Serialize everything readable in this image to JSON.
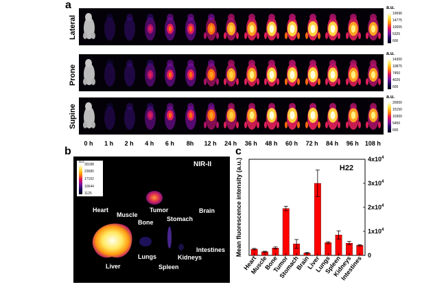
{
  "panel_a": {
    "label": "a",
    "rows": [
      {
        "name": "Lateral",
        "unit": "a.u.",
        "ticks": [
          "19696",
          "14775",
          "10055",
          "5325",
          "600"
        ]
      },
      {
        "name": "Prone",
        "unit": "a.u.",
        "ticks": [
          "14300",
          "10875",
          "7450",
          "4025",
          "600"
        ]
      },
      {
        "name": "Supine",
        "unit": "a.u.",
        "ticks": [
          "20000",
          "15150",
          "10300",
          "5450",
          "600"
        ]
      }
    ],
    "timepoints": [
      "0 h",
      "1 h",
      "2 h",
      "4 h",
      "6 h",
      "8h",
      "12 h",
      "24 h",
      "36 h",
      "48 h",
      "60 h",
      "72 h",
      "84 h",
      "96 h",
      "108 h"
    ]
  },
  "panel_b": {
    "label": "b",
    "tag": "NIR-II",
    "colorbar_unit": "a.u.",
    "colorbar_ticks": [
      "30188",
      "23680",
      "17162",
      "10644",
      "1125"
    ],
    "organs": [
      "Heart",
      "Muscle",
      "Tumor",
      "Brain",
      "Bone",
      "Stomach",
      "Intestines",
      "Lungs",
      "Kidneys",
      "Liver",
      "Spleen"
    ]
  },
  "panel_c": {
    "label": "c",
    "tag": "H22"
  },
  "chart_data": {
    "type": "bar",
    "title": "H22",
    "ylabel": "Mean fluorescence intensity (a.u.)",
    "y_axis_side": "right",
    "ylim": [
      0,
      40000
    ],
    "yticks": [
      0,
      10000,
      20000,
      30000,
      40000
    ],
    "ytick_labels": [
      "0",
      "1x10^4",
      "2x10^4",
      "3x10^4",
      "4x10^4"
    ],
    "categories": [
      "Heart",
      "Muscle",
      "Bone",
      "Tumor",
      "Stomach",
      "Brain",
      "Liver",
      "Lungs",
      "Spleen",
      "Kidneys",
      "Intestines"
    ],
    "values": [
      2600,
      1500,
      3100,
      19500,
      4800,
      1000,
      30000,
      5300,
      8500,
      5100,
      4200
    ],
    "errors": [
      300,
      200,
      400,
      900,
      1800,
      200,
      5500,
      400,
      1700,
      700,
      300
    ],
    "bar_color": "#ff0000"
  }
}
